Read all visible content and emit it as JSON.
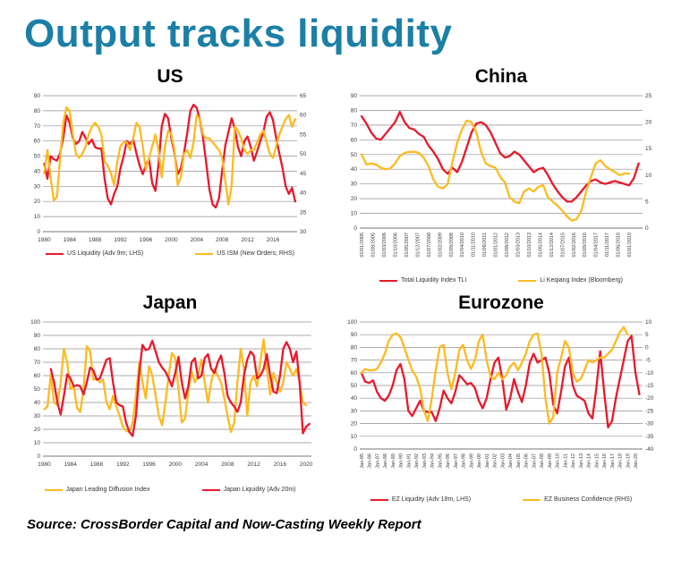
{
  "page": {
    "title": "Output tracks liquidity",
    "source": "Source: CrossBorder Capital and Now-Casting Weekly Report",
    "colors": {
      "red": "#E8192C",
      "yellow": "#FDBA21",
      "title_teal": "#1B7FA6",
      "grid": "#8f8f8f",
      "axis_text": "#3b3b46"
    }
  },
  "chart_data": [
    {
      "type": "line",
      "title": "US",
      "x_range": [
        1979.8,
        2019.8
      ],
      "x_tick_rotate": false,
      "grid": true,
      "legend_position": "bottom",
      "left_axis": {
        "min": 0,
        "max": 90,
        "ticks": [
          0,
          10,
          20,
          30,
          40,
          50,
          60,
          70,
          80,
          90
        ]
      },
      "right_axis": {
        "min": 30,
        "max": 65,
        "ticks": [
          30,
          35,
          40,
          45,
          50,
          55,
          60,
          65
        ]
      },
      "x_ticks": {
        "labels": [
          "1980",
          "1984",
          "1988",
          "1992",
          "1996",
          "2000",
          "2004",
          "2008",
          "2012",
          "2016"
        ],
        "positions": [
          1980,
          1984,
          1988,
          1992,
          1996,
          2000,
          2004,
          2008,
          2012,
          2016
        ]
      },
      "series": [
        {
          "name": "US Liquidity (Adv 9m; LHS)",
          "color": "red",
          "axis": "left",
          "x_start": 1980,
          "x_step": 0.5,
          "values": [
            45,
            35,
            50,
            48,
            47,
            52,
            62,
            77,
            72,
            62,
            58,
            60,
            66,
            62,
            58,
            61,
            56,
            55,
            55,
            35,
            22,
            18,
            25,
            30,
            42,
            50,
            60,
            58,
            61,
            52,
            44,
            38,
            44,
            48,
            32,
            27,
            45,
            70,
            78,
            75,
            62,
            52,
            38,
            42,
            52,
            65,
            80,
            84,
            82,
            74,
            62,
            45,
            28,
            18,
            16,
            22,
            40,
            57,
            66,
            75,
            68,
            56,
            50,
            60,
            63,
            56,
            47,
            53,
            60,
            66,
            76,
            79,
            74,
            62,
            52,
            42,
            30,
            25,
            29,
            20
          ]
        },
        {
          "name": "US ISM (New Orders; RHS)",
          "color": "yellow",
          "axis": "right",
          "x_start": 1980,
          "x_step": 0.5,
          "values": [
            45,
            51,
            44,
            38,
            39,
            49,
            58,
            62,
            61,
            55,
            50,
            49,
            50,
            52,
            55,
            57,
            58,
            57,
            55,
            48,
            47,
            45,
            42,
            48,
            52,
            53,
            53,
            51,
            54,
            58,
            57,
            52,
            46,
            49,
            52,
            55,
            51,
            44,
            52,
            56,
            55,
            51,
            42,
            44,
            50,
            51,
            49,
            53,
            60,
            59,
            55,
            54,
            54,
            53,
            52,
            51,
            49,
            43,
            37,
            42,
            57,
            56,
            54,
            51,
            50,
            51,
            51,
            53,
            55,
            56,
            53,
            50,
            49,
            52,
            55,
            57,
            59,
            60,
            57,
            59
          ]
        }
      ]
    },
    {
      "type": "line",
      "title": "China",
      "x_range": [
        2004.9,
        2019.7
      ],
      "x_tick_rotate": true,
      "grid": true,
      "legend_position": "bottom",
      "left_axis": {
        "min": 0,
        "max": 90,
        "ticks": [
          0,
          10,
          20,
          30,
          40,
          50,
          60,
          70,
          80,
          90
        ]
      },
      "right_axis": {
        "min": 0,
        "max": 25,
        "ticks": [
          0,
          5,
          10,
          15,
          20,
          25
        ]
      },
      "x_ticks": {
        "labels": [
          "01/01/2005",
          "01/08/2005",
          "01/03/2006",
          "01/10/2006",
          "01/05/2007",
          "01/12/2007",
          "01/07/2008",
          "01/02/2009",
          "01/09/2009",
          "01/04/2010",
          "01/11/2010",
          "01/06/2011",
          "01/01/2012",
          "01/08/2012",
          "01/03/2013",
          "01/10/2013",
          "01/05/2014",
          "01/12/2014",
          "01/07/2015",
          "01/02/2016",
          "01/09/2016",
          "01/04/2017",
          "01/11/2017",
          "01/06/2018",
          "01/01/2019"
        ],
        "positions": [
          2005,
          2005.583,
          2006.167,
          2006.75,
          2007.333,
          2007.917,
          2008.5,
          2009.083,
          2009.667,
          2010.25,
          2010.833,
          2011.417,
          2012,
          2012.583,
          2013.167,
          2013.75,
          2014.333,
          2014.917,
          2015.5,
          2016.083,
          2016.667,
          2017.25,
          2017.833,
          2018.417,
          2019
        ]
      },
      "series": [
        {
          "name": "Total Liquidity Index TLI",
          "color": "red",
          "axis": "left",
          "x_start": 2005,
          "x_step": 0.25,
          "values": [
            76,
            71,
            65,
            61,
            60,
            64,
            68,
            72,
            79,
            72,
            68,
            67,
            64,
            62,
            56,
            52,
            47,
            40,
            37,
            41,
            38,
            45,
            55,
            65,
            71,
            72,
            70,
            65,
            58,
            51,
            48,
            49,
            52,
            50,
            46,
            42,
            38,
            40,
            41,
            36,
            30,
            25,
            21,
            18,
            18,
            21,
            25,
            29,
            32,
            33,
            31,
            30,
            31,
            32,
            31,
            30,
            29,
            34,
            44
          ]
        },
        {
          "name": "Li Keqiang Index (Bloomberg)",
          "color": "yellow",
          "axis": "right",
          "x_start": 2005,
          "x_step": 0.25,
          "values": [
            13.9,
            12.0,
            12.2,
            12.0,
            11.4,
            11.1,
            11.3,
            12.2,
            13.6,
            14.2,
            14.4,
            14.4,
            14.2,
            13.3,
            11.7,
            9.2,
            7.8,
            7.5,
            8.3,
            12.5,
            16.1,
            18.6,
            20.3,
            20.0,
            18.1,
            14.4,
            12.2,
            11.7,
            11.4,
            9.7,
            8.6,
            5.8,
            5.0,
            4.7,
            6.9,
            7.5,
            6.9,
            7.8,
            8.1,
            5.8,
            5.0,
            4.2,
            3.3,
            2.2,
            1.4,
            1.7,
            3.3,
            6.9,
            9.7,
            12.2,
            12.8,
            11.7,
            11.1,
            10.6,
            10.0,
            10.3,
            10.3
          ]
        }
      ]
    },
    {
      "type": "line",
      "title": "Japan",
      "x_range": [
        1979.8,
        2020.8
      ],
      "x_tick_rotate": false,
      "grid": true,
      "legend_position": "bottom",
      "left_axis": {
        "min": 0,
        "max": 100,
        "ticks": [
          0,
          10,
          20,
          30,
          40,
          50,
          60,
          70,
          80,
          90,
          100
        ]
      },
      "x_ticks": {
        "labels": [
          "1980",
          "1984",
          "1988",
          "1992",
          "1996",
          "2000",
          "2004",
          "2008",
          "2012",
          "2016",
          "2020"
        ],
        "positions": [
          1980,
          1984,
          1988,
          1992,
          1996,
          2000,
          2004,
          2008,
          2012,
          2016,
          2020
        ]
      },
      "series": [
        {
          "name": "Japan Leading Diffusion Index",
          "color": "yellow",
          "axis": "left",
          "x_start": 1980,
          "x_step": 0.5,
          "values": [
            35,
            37,
            61,
            40,
            38,
            55,
            80,
            70,
            50,
            52,
            36,
            33,
            50,
            82,
            78,
            57,
            58,
            55,
            57,
            40,
            35,
            45,
            37,
            30,
            22,
            19,
            18,
            25,
            45,
            70,
            55,
            43,
            67,
            60,
            45,
            30,
            23,
            40,
            60,
            77,
            73,
            50,
            25,
            28,
            48,
            63,
            55,
            60,
            72,
            55,
            40,
            55,
            65,
            60,
            55,
            43,
            30,
            18,
            25,
            55,
            80,
            65,
            30,
            55,
            60,
            52,
            70,
            87,
            65,
            46,
            62,
            55,
            48,
            55,
            70,
            65,
            60,
            65,
            55,
            40,
            38
          ]
        },
        {
          "name": "Japan Liquidity (Adv 20m)",
          "color": "red",
          "axis": "left",
          "x_start": 1981,
          "x_step": 0.5,
          "values": [
            65,
            55,
            40,
            31,
            45,
            61,
            58,
            52,
            53,
            52,
            46,
            55,
            66,
            64,
            57,
            58,
            65,
            72,
            73,
            55,
            40,
            38,
            37,
            25,
            18,
            15,
            30,
            62,
            83,
            79,
            80,
            86,
            78,
            70,
            66,
            63,
            58,
            52,
            62,
            74,
            55,
            43,
            52,
            70,
            73,
            58,
            60,
            73,
            76,
            65,
            62,
            70,
            75,
            62,
            45,
            40,
            37,
            33,
            40,
            60,
            72,
            78,
            75,
            58,
            60,
            65,
            76,
            60,
            48,
            47,
            60,
            80,
            85,
            80,
            70,
            78,
            55,
            17,
            22,
            24
          ]
        }
      ]
    },
    {
      "type": "line",
      "title": "Eurozone",
      "x_range": [
        1984.8,
        2020.9
      ],
      "x_tick_rotate": true,
      "grid": true,
      "legend_position": "bottom",
      "left_axis": {
        "min": 0,
        "max": 100,
        "ticks": [
          0,
          10,
          20,
          30,
          40,
          50,
          60,
          70,
          80,
          90,
          100
        ]
      },
      "right_axis": {
        "min": -40,
        "max": 10,
        "ticks": [
          -40,
          -35,
          -30,
          -25,
          -20,
          -15,
          -10,
          -5,
          0,
          5,
          10
        ]
      },
      "x_ticks": {
        "labels": [
          "Jan-85",
          "Jan-86",
          "Jan-87",
          "Jan-88",
          "Jan-89",
          "Jan-90",
          "Jan-91",
          "Jan-92",
          "Jan-93",
          "Jan-94",
          "Jan-95",
          "Jan-96",
          "Jan-97",
          "Jan-98",
          "Jan-99",
          "Jan-00",
          "Jan-01",
          "Jan-02",
          "Jan-03",
          "Jan-04",
          "Jan-05",
          "Jan-06",
          "Jan-07",
          "Jan-08",
          "Jan-09",
          "Jan-10",
          "Jan-11",
          "Jan-12",
          "Jan-13",
          "Jan-14",
          "Jan-15",
          "Jan-16",
          "Jan-17",
          "Jan-18",
          "Jan-19",
          "Jan-20"
        ],
        "positions": [
          1985,
          1986,
          1987,
          1988,
          1989,
          1990,
          1991,
          1992,
          1993,
          1994,
          1995,
          1996,
          1997,
          1998,
          1999,
          2000,
          2001,
          2002,
          2003,
          2004,
          2005,
          2006,
          2007,
          2008,
          2009,
          2010,
          2011,
          2012,
          2013,
          2014,
          2015,
          2016,
          2017,
          2018,
          2019,
          2020
        ]
      },
      "series": [
        {
          "name": "EZ Liquidity (Adv 18m, LHS)",
          "color": "red",
          "axis": "left",
          "x_start": 1985,
          "x_step": 0.5,
          "values": [
            60,
            53,
            52,
            54,
            45,
            40,
            38,
            42,
            50,
            62,
            67,
            55,
            30,
            26,
            32,
            38,
            30,
            29,
            29,
            22,
            32,
            46,
            40,
            36,
            45,
            58,
            55,
            51,
            52,
            48,
            38,
            32,
            40,
            55,
            68,
            72,
            55,
            31,
            40,
            55,
            45,
            37,
            50,
            68,
            75,
            68,
            70,
            72,
            60,
            35,
            28,
            45,
            65,
            72,
            50,
            42,
            40,
            38,
            28,
            24,
            48,
            77,
            45,
            17,
            22,
            40,
            55,
            70,
            85,
            89,
            60,
            43
          ]
        },
        {
          "name": "EZ Business Confidence (RHS)",
          "color": "yellow",
          "axis": "right",
          "x_start": 1985,
          "x_step": 0.5,
          "values": [
            -10,
            -8.5,
            -9,
            -9,
            -8.5,
            -6,
            -2.5,
            2.5,
            5,
            5.5,
            4,
            0,
            -5,
            -9,
            -11.5,
            -16,
            -25,
            -29,
            -20,
            -9,
            0,
            1,
            -10,
            -16.5,
            -10,
            -1,
            1,
            -5,
            -8.5,
            -5,
            2.5,
            5,
            -5,
            -11.5,
            -12.5,
            -10,
            -12.5,
            -11,
            -7.5,
            -6,
            -9,
            -6,
            -2.5,
            2.5,
            5,
            5.5,
            -2.5,
            -20,
            -30,
            -27.5,
            -10,
            -4,
            2.5,
            0,
            -10,
            -13.5,
            -12.5,
            -9,
            -5,
            -6,
            -5,
            -4,
            -4,
            -2.5,
            -1,
            2.5,
            6,
            8,
            5
          ]
        }
      ]
    }
  ]
}
